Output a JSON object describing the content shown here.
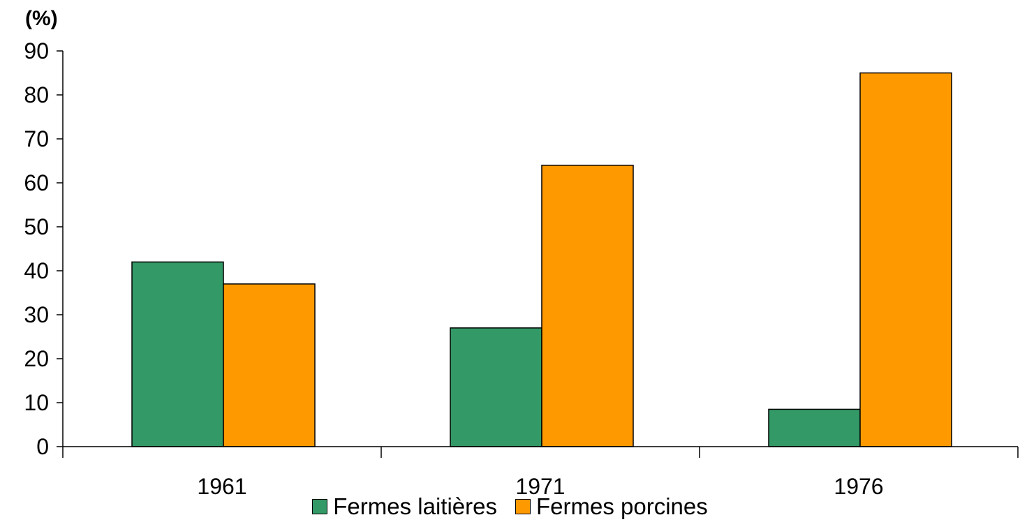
{
  "chart_data": {
    "type": "bar",
    "title": "",
    "ylabel": "(%)",
    "xlabel": "",
    "categories": [
      "1961",
      "1971",
      "1976"
    ],
    "series": [
      {
        "name": "Fermes laitières",
        "values": [
          42,
          27,
          8.5
        ],
        "color": "#339966"
      },
      {
        "name": "Fermes porcines",
        "values": [
          37,
          64,
          85
        ],
        "color": "#FF9900"
      }
    ],
    "ylim": [
      0,
      90
    ],
    "yticks": [
      "0",
      "10",
      "20",
      "30",
      "40",
      "50",
      "60",
      "70",
      "80",
      "90"
    ],
    "grid": false,
    "legend_position": "bottom"
  }
}
